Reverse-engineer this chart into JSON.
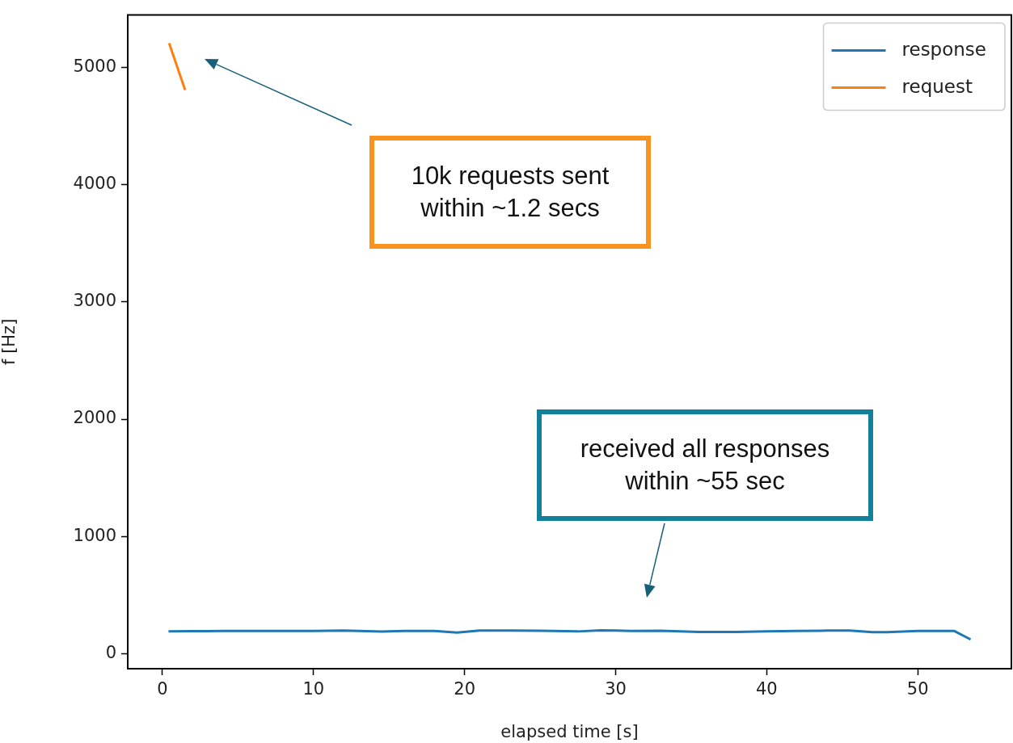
{
  "chart_data": {
    "type": "line",
    "xlabel": "elapsed time [s]",
    "ylabel": "f [Hz]",
    "xlim": [
      -2.3,
      56.2
    ],
    "xticks": [
      0,
      10,
      20,
      30,
      40,
      50
    ],
    "ylim": [
      -130,
      5450
    ],
    "yticks": [
      0,
      1000,
      2000,
      3000,
      4000,
      5000
    ],
    "grid": false,
    "legend": "top right",
    "series": [
      {
        "name": "response",
        "color": "#1f77b4",
        "x": [
          0.4,
          2,
          4,
          6,
          8,
          10,
          12,
          14.5,
          16,
          18,
          19.5,
          21,
          23,
          25,
          27.5,
          29,
          31,
          33,
          35.5,
          38,
          40,
          42,
          44,
          45.5,
          47,
          48,
          50,
          52.4,
          53.5
        ],
        "values": [
          188,
          190,
          192,
          193,
          192,
          192,
          195,
          187,
          192,
          193,
          178,
          195,
          196,
          194,
          188,
          198,
          193,
          194,
          183,
          183,
          188,
          193,
          195,
          195,
          182,
          182,
          192,
          193,
          120
        ]
      },
      {
        "name": "request",
        "color": "#ff7f0e",
        "x": [
          0.44,
          1.5
        ],
        "values": [
          5210,
          4810
        ]
      }
    ],
    "annotations": [
      "10k requests sent\nwithin ~1.2 secs",
      "received all responses\nwithin ~55 sec"
    ]
  }
}
